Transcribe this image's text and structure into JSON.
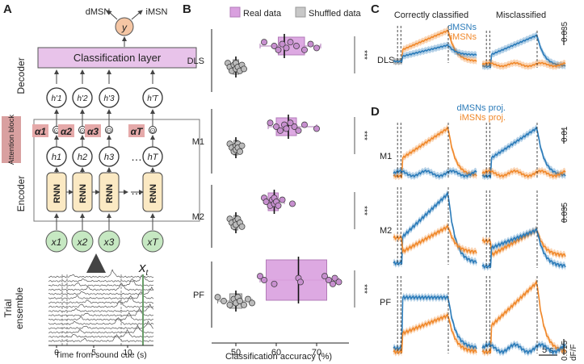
{
  "panels": {
    "A": "A",
    "B": "B",
    "C": "C",
    "D": "D"
  },
  "panel_a": {
    "outputs": {
      "y": "y",
      "left": "dMSN",
      "right": "iMSN"
    },
    "decoder_label": "Decoder",
    "classification_layer": "Classification layer",
    "attention_label": "Attention block",
    "encoder_label": "Encoder",
    "rnn_label": "RNN",
    "h_prime": [
      "h'1",
      "h'2",
      "h'3",
      "h'T"
    ],
    "alphas": [
      "α1",
      "α2",
      "α3",
      "αT"
    ],
    "h": [
      "h1",
      "h2",
      "h3",
      "hT"
    ],
    "x": [
      "x1",
      "x2",
      "x3",
      "xT"
    ],
    "ellipsis": "…",
    "odot": "⊙",
    "xt_label": "xt",
    "trial_label": "Trial ensemble",
    "x_ticks": [
      "0",
      "5",
      "10"
    ],
    "x_title": "Time from sound cue (s)"
  },
  "chart_data": [
    {
      "type": "box-strip",
      "title": "",
      "legend": [
        "Real data",
        "Shuffled data"
      ],
      "categories": [
        "DLS",
        "M1",
        "M2",
        "PF"
      ],
      "xlabel": "Classification accuracy (%)",
      "xlim": [
        44,
        78
      ],
      "x_ticks": [
        50,
        60,
        70
      ],
      "significance": [
        "***",
        "***",
        "***",
        "***"
      ],
      "series": [
        {
          "name": "Real data",
          "color": "#d9a0df",
          "boxes": [
            {
              "whisker_low": 56,
              "q1": 60.5,
              "median": 62,
              "q3": 67,
              "whisker_high": 71
            },
            {
              "whisker_low": 58,
              "q1": 60,
              "median": 63,
              "q3": 65,
              "whisker_high": 70
            },
            {
              "whisker_low": 57,
              "q1": 58,
              "median": 59.5,
              "q3": 60.5,
              "whisker_high": 62
            },
            {
              "whisker_low": 56,
              "q1": 57.5,
              "median": 65.5,
              "q3": 72.5,
              "whisker_high": 75.5
            }
          ],
          "points": [
            [
              57,
              59.5,
              60.5,
              61.5,
              62.5,
              63.5,
              65,
              67,
              68.5,
              70
            ],
            [
              58.5,
              60,
              61,
              62,
              62.5,
              63.5,
              64.5,
              65.5,
              67,
              70
            ],
            [
              57,
              57.5,
              58.5,
              59,
              59.5,
              59.5,
              60,
              60.5,
              61.5,
              64
            ],
            [
              56,
              57,
              59.5,
              65.5,
              66,
              72,
              73,
              74,
              74.5,
              75.5
            ]
          ]
        },
        {
          "name": "Shuffled data",
          "color": "#c8c8c8",
          "boxes": [
            {
              "whisker_low": 48,
              "q1": 49.3,
              "median": 50,
              "q3": 50.7,
              "whisker_high": 52
            },
            {
              "whisker_low": 48.5,
              "q1": 49.5,
              "median": 50,
              "q3": 50.5,
              "whisker_high": 51.5
            },
            {
              "whisker_low": 48.5,
              "q1": 49.5,
              "median": 50,
              "q3": 50.5,
              "whisker_high": 51.5
            },
            {
              "whisker_low": 45.5,
              "q1": 48.5,
              "median": 50,
              "q3": 51.5,
              "whisker_high": 54
            }
          ],
          "points": [
            [
              48,
              48.5,
              49,
              49.5,
              50,
              50,
              50.5,
              51,
              51.5,
              52
            ],
            [
              48.5,
              49,
              49.5,
              50,
              50,
              50.5,
              50.5,
              51,
              51.5
            ],
            [
              48.5,
              49,
              49.5,
              50,
              50,
              50.5,
              51,
              51.5
            ],
            [
              45.5,
              47,
              48.5,
              49.5,
              50,
              50.5,
              51,
              52,
              53,
              54
            ]
          ]
        }
      ]
    },
    {
      "type": "line",
      "panel": "C",
      "titles": [
        "Correctly classified",
        "Misclassified"
      ],
      "legend": [
        {
          "name": "dMSNs",
          "color": "#2b7bb9"
        },
        {
          "name": "iMSNs",
          "color": "#f0882a"
        }
      ],
      "row": "DLS",
      "scale_label": "0.035"
    },
    {
      "type": "line",
      "panel": "D",
      "legend": [
        {
          "name": "dMSNs proj.",
          "color": "#2b7bb9"
        },
        {
          "name": "iMSNs proj.",
          "color": "#f0882a"
        }
      ],
      "rows": [
        "M1",
        "M2",
        "PF"
      ],
      "scale_labels": [
        "0.01",
        "0.035",
        "0.015"
      ],
      "time_scale": "5 s",
      "y_unit": "dF/F"
    }
  ]
}
